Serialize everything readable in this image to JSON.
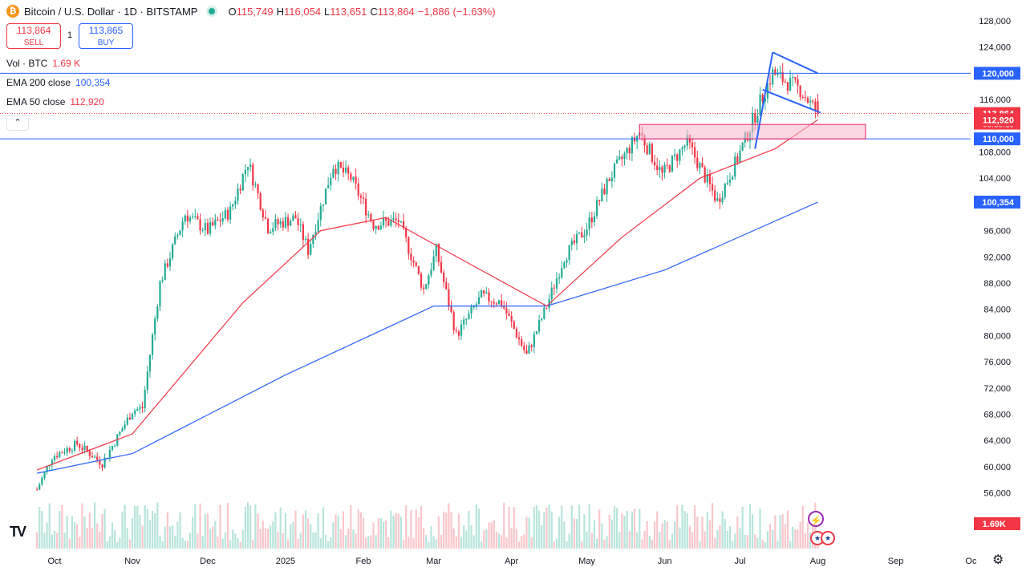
{
  "header": {
    "coin_icon": "bitcoin-icon",
    "title": "Bitcoin / U.S. Dollar · 1D · BITSTAMP",
    "ohlc": {
      "o_label": "O",
      "o_value": "115,749",
      "h_label": "H",
      "h_value": "116,054",
      "l_label": "L",
      "l_value": "113,651",
      "c_label": "C",
      "c_value": "113,864",
      "change": "−1,886 (−1.63%)"
    }
  },
  "trade": {
    "sell_price": "113,864",
    "sell_label": "SELL",
    "spread": "1",
    "buy_price": "113,865",
    "buy_label": "BUY"
  },
  "indicators": {
    "vol_label": "Vol · BTC",
    "vol_value": "1.69 K",
    "ema200_label": "EMA 200 close",
    "ema200_value": "100,354",
    "ema50_label": "EMA 50 close",
    "ema50_value": "112,920"
  },
  "collapse_glyph": "⌃",
  "logo_text": "TV",
  "bottom_icons": {
    "settings": "gear-icon",
    "alert": "lightning-icon",
    "events": "us-flag-icon"
  },
  "colors": {
    "up": "#22ab94",
    "down": "#f23645",
    "ema200": "#2962ff",
    "ema50": "#f23645",
    "pattern": "#2962ff",
    "zone": "#e91e63"
  },
  "chart_data": {
    "type": "candlestick",
    "symbol": "BTCUSD",
    "timeframe": "1D",
    "y_axis_ticks": [
      56000,
      60000,
      64000,
      68000,
      72000,
      76000,
      80000,
      84000,
      88000,
      92000,
      96000,
      100000,
      104000,
      108000,
      112000,
      116000,
      120000,
      124000,
      128000
    ],
    "y_axis_tick_labels": [
      "56,000",
      "60,000",
      "64,000",
      "68,000",
      "72,000",
      "76,000",
      "80,000",
      "84,000",
      "88,000",
      "92,000",
      "96,000",
      "100,000",
      "104,000",
      "108,000",
      "112,000",
      "116,000",
      "120,000",
      "124,000",
      "128,000"
    ],
    "x_axis_labels": [
      "Oct",
      "Nov",
      "Dec",
      "2025",
      "Feb",
      "Mar",
      "Apr",
      "May",
      "Jun",
      "Jul",
      "Aug",
      "Sep",
      "Oc"
    ],
    "close_path_approx": [
      {
        "date": "Sep 24",
        "close": 56500
      },
      {
        "date": "Sep 30",
        "close": 61500
      },
      {
        "date": "Oct 10",
        "close": 63500
      },
      {
        "date": "Oct 20",
        "close": 60500
      },
      {
        "date": "Nov 1",
        "close": 68500
      },
      {
        "date": "Nov 5",
        "close": 69000
      },
      {
        "date": "Nov 12",
        "close": 88000
      },
      {
        "date": "Nov 22",
        "close": 98500
      },
      {
        "date": "Dec 1",
        "close": 96000
      },
      {
        "date": "Dec 10",
        "close": 99000
      },
      {
        "date": "Dec 17",
        "close": 106500
      },
      {
        "date": "Dec 25",
        "close": 96500
      },
      {
        "date": "Jan 5",
        "close": 98000
      },
      {
        "date": "Jan 10",
        "close": 93000
      },
      {
        "date": "Jan 20",
        "close": 106000
      },
      {
        "date": "Jan 27",
        "close": 104000
      },
      {
        "date": "Feb 5",
        "close": 97000
      },
      {
        "date": "Feb 15",
        "close": 97500
      },
      {
        "date": "Feb 25",
        "close": 87000
      },
      {
        "date": "Mar 2",
        "close": 93000
      },
      {
        "date": "Mar 10",
        "close": 80000
      },
      {
        "date": "Mar 20",
        "close": 86000
      },
      {
        "date": "Mar 28",
        "close": 85000
      },
      {
        "date": "Apr 7",
        "close": 77000
      },
      {
        "date": "Apr 15",
        "close": 84500
      },
      {
        "date": "Apr 22",
        "close": 92000
      },
      {
        "date": "May 1",
        "close": 96500
      },
      {
        "date": "May 10",
        "close": 104000
      },
      {
        "date": "May 22",
        "close": 111000
      },
      {
        "date": "May 31",
        "close": 104500
      },
      {
        "date": "Jun 10",
        "close": 109500
      },
      {
        "date": "Jun 22",
        "close": 100500
      },
      {
        "date": "Jun 30",
        "close": 107000
      },
      {
        "date": "Jul 10",
        "close": 116500
      },
      {
        "date": "Jul 14",
        "close": 120000
      },
      {
        "date": "Jul 25",
        "close": 117500
      },
      {
        "date": "Aug 1",
        "close": 113864
      }
    ],
    "ema200_path_approx": [
      {
        "date": "Sep 24",
        "value": 59000
      },
      {
        "date": "Nov 1",
        "value": 62000
      },
      {
        "date": "Jan 1",
        "value": 74000
      },
      {
        "date": "Mar 1",
        "value": 84500
      },
      {
        "date": "Apr 15",
        "value": 84500
      },
      {
        "date": "Jun 1",
        "value": 90000
      },
      {
        "date": "Aug 1",
        "value": 100354
      }
    ],
    "ema50_path_approx": [
      {
        "date": "Sep 24",
        "value": 59500
      },
      {
        "date": "Nov 1",
        "value": 65000
      },
      {
        "date": "Dec 15",
        "value": 85000
      },
      {
        "date": "Jan 15",
        "value": 96000
      },
      {
        "date": "Feb 10",
        "value": 98000
      },
      {
        "date": "Mar 15",
        "value": 91000
      },
      {
        "date": "Apr 15",
        "value": 84500
      },
      {
        "date": "May 15",
        "value": 95000
      },
      {
        "date": "Jun 15",
        "value": 104000
      },
      {
        "date": "Jul 15",
        "value": 108500
      },
      {
        "date": "Aug 1",
        "value": 112920
      }
    ],
    "horizontal_levels": [
      {
        "value": 120000,
        "label": "120,000",
        "color": "#2962ff"
      },
      {
        "value": 110000,
        "label": "110,000",
        "color": "#2962ff"
      }
    ],
    "zone": {
      "from": 110000,
      "to": 111500,
      "start": "May 22",
      "end": "Aug 20"
    },
    "pattern_lines": [
      {
        "from": {
          "date": "Jul 14",
          "value": 123200
        },
        "to": {
          "date": "Aug 1",
          "value": 120000
        }
      },
      {
        "from": {
          "date": "Jul 10",
          "value": 117500
        },
        "to": {
          "date": "Aug 2",
          "value": 114000
        }
      },
      {
        "from": {
          "date": "Jul 7",
          "value": 108500
        },
        "to": {
          "date": "Jul 14",
          "value": 123200
        }
      }
    ],
    "price_labels": [
      {
        "text": "120,000",
        "value": 120000,
        "color": "#2962ff"
      },
      {
        "text": "113,864",
        "value": 113864,
        "color": "#f23645",
        "countdown": "05:38:19"
      },
      {
        "text": "112,920",
        "value": 112920,
        "color": "#f23645"
      },
      {
        "text": "110,000",
        "value": 110000,
        "color": "#2962ff"
      },
      {
        "text": "100,354",
        "value": 100354,
        "color": "#2962ff"
      }
    ],
    "volume_label": "1.69K",
    "last_price": 113864,
    "grid": false
  }
}
